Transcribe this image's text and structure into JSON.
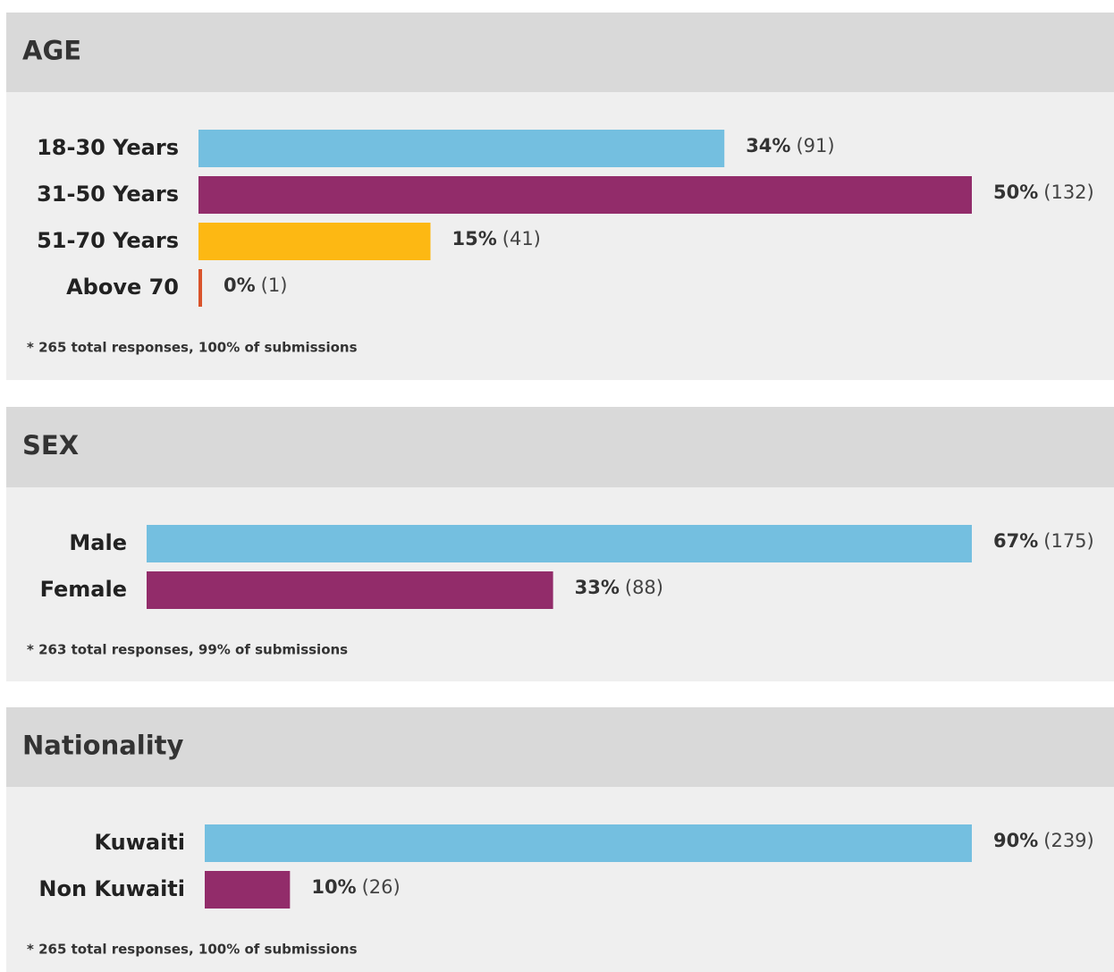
{
  "chart_data": [
    {
      "type": "hbar",
      "title": "AGE",
      "categories": [
        "18-30 Years",
        "31-50 Years",
        "51-70 Years",
        "Above 70"
      ],
      "values": [
        34,
        50,
        15,
        0
      ],
      "value_labels": [
        "34%",
        "50%",
        "15%",
        "0%"
      ],
      "counts": [
        91,
        132,
        41,
        1
      ],
      "count_labels": [
        "(91)",
        "(132)",
        "(41)",
        "(1)"
      ],
      "colors": [
        "#74bfe0",
        "#922c6a",
        "#fdb813",
        "#d9532b"
      ],
      "note": "* 265 total responses, 100% of submissions"
    },
    {
      "type": "hbar",
      "title": "SEX",
      "categories": [
        "Male",
        "Female"
      ],
      "values": [
        67,
        33
      ],
      "value_labels": [
        "67%",
        "33%"
      ],
      "counts": [
        175,
        88
      ],
      "count_labels": [
        "(175)",
        "(88)"
      ],
      "colors": [
        "#74bfe0",
        "#922c6a"
      ],
      "note": "* 263 total responses, 99% of submissions"
    },
    {
      "type": "hbar",
      "title": "Nationality",
      "categories": [
        "Kuwaiti",
        "Non Kuwaiti"
      ],
      "values": [
        90,
        10
      ],
      "value_labels": [
        "90%",
        "10%"
      ],
      "counts": [
        239,
        26
      ],
      "count_labels": [
        "(239)",
        "(26)"
      ],
      "colors": [
        "#74bfe0",
        "#922c6a"
      ],
      "note": "* 265 total responses, 100% of submissions"
    }
  ]
}
